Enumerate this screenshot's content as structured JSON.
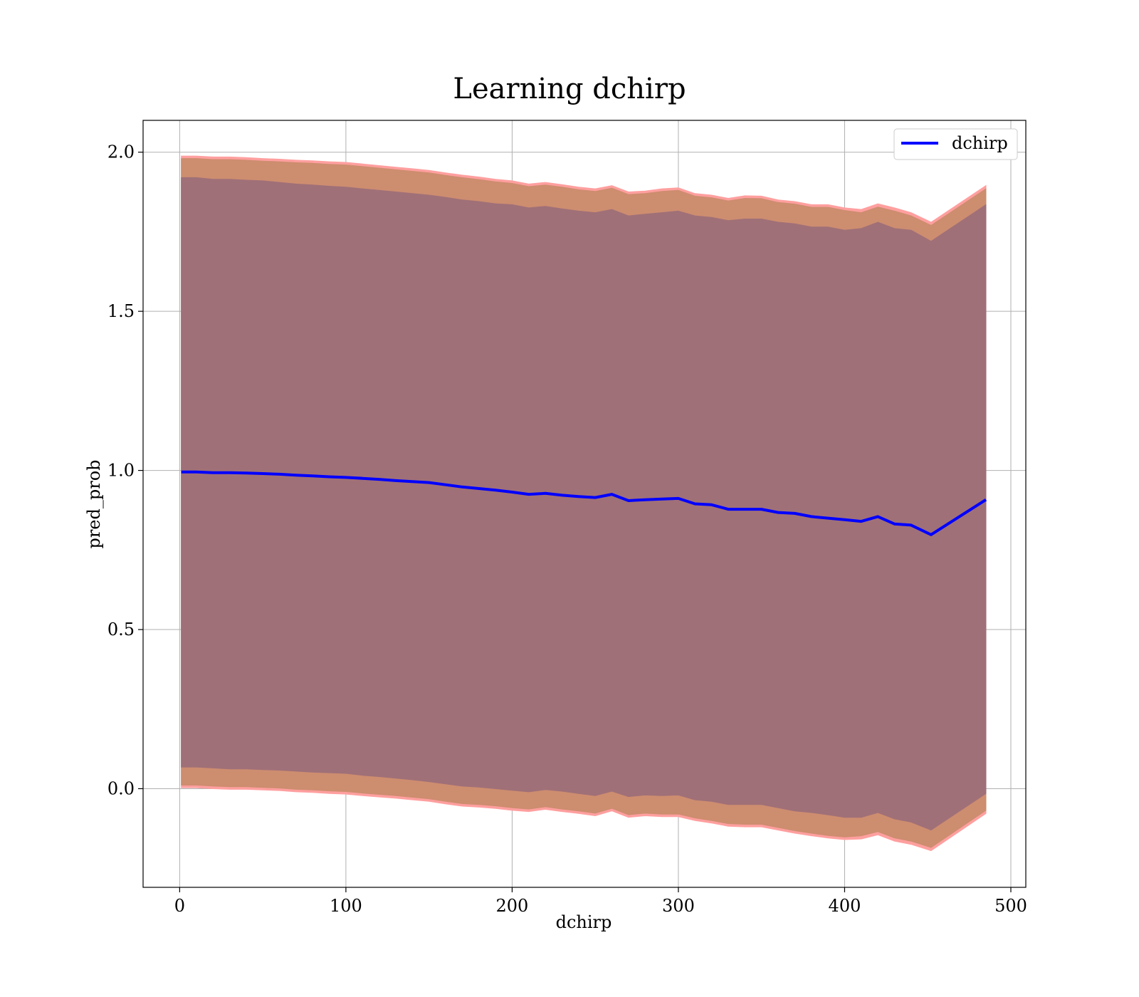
{
  "chart_data": {
    "type": "line",
    "title": "Learning dchirp",
    "xlabel": "dchirp",
    "ylabel": "pred_prob",
    "xlim": [
      -22,
      509
    ],
    "ylim": [
      -0.31,
      2.1
    ],
    "x_ticks": [
      0,
      100,
      200,
      300,
      400,
      500
    ],
    "y_ticks": [
      0.0,
      0.5,
      1.0,
      1.5,
      2.0
    ],
    "x_tick_labels": [
      "0",
      "100",
      "200",
      "300",
      "400",
      "500"
    ],
    "y_tick_labels": [
      "0.0",
      "0.5",
      "1.0",
      "1.5",
      "2.0"
    ],
    "grid": true,
    "legend": {
      "position": "top-right",
      "entries": [
        "dchirp"
      ]
    },
    "colors": {
      "line": "#0000ff",
      "outer_band": "#ff9f9f",
      "middle_band": "#cd8d6f",
      "inner_band": "#a07078",
      "grid": "#b0b0b0"
    },
    "series": [
      {
        "name": "dchirp",
        "x": [
          1,
          10,
          20,
          30,
          40,
          50,
          60,
          70,
          80,
          90,
          100,
          110,
          120,
          130,
          140,
          150,
          160,
          170,
          180,
          190,
          200,
          210,
          220,
          230,
          240,
          250,
          260,
          270,
          280,
          290,
          300,
          310,
          320,
          330,
          340,
          350,
          360,
          370,
          380,
          390,
          400,
          410,
          420,
          430,
          440,
          452,
          485
        ],
        "y": [
          0.995,
          0.995,
          0.993,
          0.993,
          0.992,
          0.99,
          0.988,
          0.985,
          0.983,
          0.98,
          0.978,
          0.975,
          0.972,
          0.968,
          0.965,
          0.962,
          0.955,
          0.948,
          0.943,
          0.938,
          0.932,
          0.925,
          0.928,
          0.922,
          0.918,
          0.915,
          0.925,
          0.905,
          0.908,
          0.91,
          0.912,
          0.895,
          0.892,
          0.878,
          0.878,
          0.878,
          0.868,
          0.865,
          0.855,
          0.85,
          0.845,
          0.84,
          0.855,
          0.832,
          0.828,
          0.798,
          0.908
        ]
      }
    ],
    "bands": [
      {
        "upper": [
          1.988,
          1.988,
          1.985,
          1.985,
          1.983,
          1.98,
          1.978,
          1.975,
          1.973,
          1.97,
          1.968,
          1.963,
          1.958,
          1.953,
          1.948,
          1.943,
          1.935,
          1.928,
          1.922,
          1.915,
          1.91,
          1.9,
          1.905,
          1.898,
          1.89,
          1.885,
          1.895,
          1.875,
          1.878,
          1.885,
          1.888,
          1.87,
          1.865,
          1.855,
          1.863,
          1.862,
          1.85,
          1.845,
          1.835,
          1.835,
          1.825,
          1.82,
          1.838,
          1.825,
          1.81,
          1.78,
          1.895
        ],
        "lower": [
          0.003,
          0.003,
          0.0,
          -0.002,
          -0.002,
          -0.004,
          -0.006,
          -0.01,
          -0.012,
          -0.015,
          -0.017,
          -0.022,
          -0.026,
          -0.03,
          -0.035,
          -0.04,
          -0.048,
          -0.055,
          -0.058,
          -0.062,
          -0.068,
          -0.072,
          -0.065,
          -0.072,
          -0.078,
          -0.085,
          -0.07,
          -0.09,
          -0.085,
          -0.088,
          -0.088,
          -0.1,
          -0.108,
          -0.118,
          -0.12,
          -0.12,
          -0.13,
          -0.14,
          -0.148,
          -0.155,
          -0.16,
          -0.158,
          -0.145,
          -0.165,
          -0.175,
          -0.195,
          -0.078
        ]
      },
      {
        "upper": [
          1.98,
          1.98,
          1.977,
          1.977,
          1.975,
          1.972,
          1.97,
          1.967,
          1.965,
          1.962,
          1.96,
          1.955,
          1.95,
          1.945,
          1.94,
          1.935,
          1.927,
          1.92,
          1.914,
          1.907,
          1.902,
          1.892,
          1.897,
          1.89,
          1.882,
          1.877,
          1.887,
          1.867,
          1.87,
          1.877,
          1.88,
          1.862,
          1.857,
          1.847,
          1.855,
          1.854,
          1.842,
          1.837,
          1.827,
          1.827,
          1.817,
          1.81,
          1.828,
          1.815,
          1.8,
          1.77,
          1.885
        ],
        "lower": [
          0.011,
          0.011,
          0.008,
          0.006,
          0.006,
          0.004,
          0.002,
          -0.002,
          -0.004,
          -0.007,
          -0.009,
          -0.014,
          -0.018,
          -0.022,
          -0.027,
          -0.032,
          -0.04,
          -0.047,
          -0.05,
          -0.054,
          -0.06,
          -0.064,
          -0.057,
          -0.064,
          -0.07,
          -0.077,
          -0.062,
          -0.082,
          -0.077,
          -0.08,
          -0.08,
          -0.092,
          -0.1,
          -0.11,
          -0.112,
          -0.112,
          -0.122,
          -0.132,
          -0.14,
          -0.147,
          -0.152,
          -0.148,
          -0.135,
          -0.155,
          -0.165,
          -0.185,
          -0.068
        ]
      },
      {
        "upper": [
          1.92,
          1.92,
          1.915,
          1.915,
          1.912,
          1.91,
          1.905,
          1.9,
          1.897,
          1.893,
          1.89,
          1.885,
          1.88,
          1.875,
          1.87,
          1.865,
          1.858,
          1.85,
          1.845,
          1.838,
          1.835,
          1.825,
          1.83,
          1.822,
          1.815,
          1.81,
          1.82,
          1.8,
          1.805,
          1.81,
          1.815,
          1.8,
          1.795,
          1.785,
          1.79,
          1.79,
          1.78,
          1.775,
          1.765,
          1.765,
          1.755,
          1.76,
          1.78,
          1.76,
          1.755,
          1.72,
          1.835
        ],
        "lower": [
          0.068,
          0.068,
          0.065,
          0.062,
          0.062,
          0.06,
          0.058,
          0.055,
          0.052,
          0.05,
          0.048,
          0.042,
          0.038,
          0.033,
          0.028,
          0.022,
          0.015,
          0.008,
          0.005,
          0.0,
          -0.005,
          -0.01,
          -0.003,
          -0.008,
          -0.015,
          -0.022,
          -0.008,
          -0.025,
          -0.02,
          -0.022,
          -0.02,
          -0.035,
          -0.04,
          -0.05,
          -0.05,
          -0.05,
          -0.06,
          -0.07,
          -0.075,
          -0.082,
          -0.09,
          -0.09,
          -0.075,
          -0.095,
          -0.105,
          -0.13,
          -0.015
        ]
      }
    ]
  }
}
